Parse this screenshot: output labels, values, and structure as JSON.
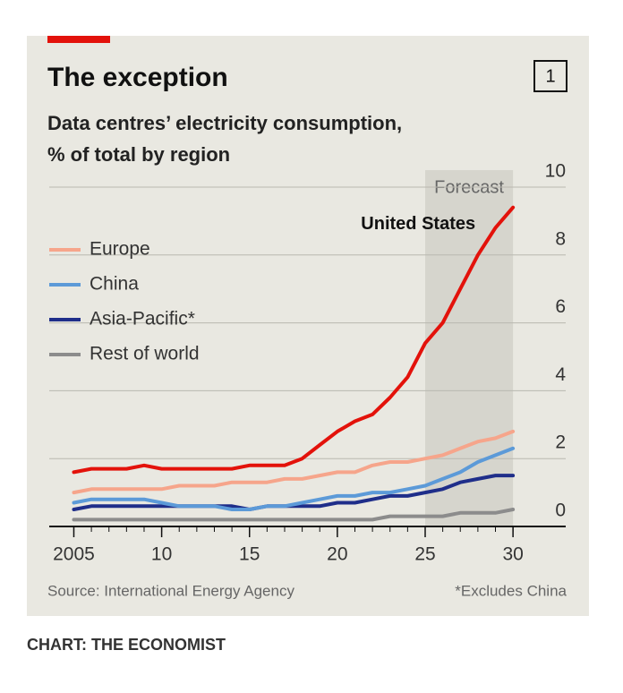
{
  "chart_data": {
    "type": "line",
    "title": "The exception",
    "chart_number": "1",
    "subtitle": [
      "Data centres’ electricity consumption,",
      "% of total by region"
    ],
    "x": [
      2005,
      2006,
      2007,
      2008,
      2009,
      2010,
      2011,
      2012,
      2013,
      2014,
      2015,
      2016,
      2017,
      2018,
      2019,
      2020,
      2021,
      2022,
      2023,
      2024,
      2025,
      2026,
      2027,
      2028,
      2029,
      2030
    ],
    "series": [
      {
        "name": "United States",
        "color": "#e3120b",
        "direct_label": true,
        "values": [
          1.6,
          1.7,
          1.7,
          1.7,
          1.8,
          1.7,
          1.7,
          1.7,
          1.7,
          1.7,
          1.8,
          1.8,
          1.8,
          2.0,
          2.4,
          2.8,
          3.1,
          3.3,
          3.8,
          4.4,
          5.4,
          6.0,
          7.0,
          8.0,
          8.8,
          9.4
        ]
      },
      {
        "name": "Europe",
        "color": "#f6a58b",
        "values": [
          1.0,
          1.1,
          1.1,
          1.1,
          1.1,
          1.1,
          1.2,
          1.2,
          1.2,
          1.3,
          1.3,
          1.3,
          1.4,
          1.4,
          1.5,
          1.6,
          1.6,
          1.8,
          1.9,
          1.9,
          2.0,
          2.1,
          2.3,
          2.5,
          2.6,
          2.8
        ]
      },
      {
        "name": "China",
        "color": "#5c9ad8",
        "values": [
          0.7,
          0.8,
          0.8,
          0.8,
          0.8,
          0.7,
          0.6,
          0.6,
          0.6,
          0.5,
          0.5,
          0.6,
          0.6,
          0.7,
          0.8,
          0.9,
          0.9,
          1.0,
          1.0,
          1.1,
          1.2,
          1.4,
          1.6,
          1.9,
          2.1,
          2.3
        ]
      },
      {
        "name": "Asia-Pacific*",
        "color": "#1f2e8a",
        "values": [
          0.5,
          0.6,
          0.6,
          0.6,
          0.6,
          0.6,
          0.6,
          0.6,
          0.6,
          0.6,
          0.5,
          0.6,
          0.6,
          0.6,
          0.6,
          0.7,
          0.7,
          0.8,
          0.9,
          0.9,
          1.0,
          1.1,
          1.3,
          1.4,
          1.5,
          1.5
        ]
      },
      {
        "name": "Rest of world",
        "color": "#8c8c8c",
        "values": [
          0.2,
          0.2,
          0.2,
          0.2,
          0.2,
          0.2,
          0.2,
          0.2,
          0.2,
          0.2,
          0.2,
          0.2,
          0.2,
          0.2,
          0.2,
          0.2,
          0.2,
          0.2,
          0.3,
          0.3,
          0.3,
          0.3,
          0.4,
          0.4,
          0.4,
          0.5
        ]
      }
    ],
    "shaded_region": {
      "label": "Forecast",
      "from": 2025,
      "to": 2030
    },
    "xlim": [
      2003.6,
      2033
    ],
    "xticks": [
      2005,
      {
        "value": 2010,
        "label": "10"
      },
      {
        "value": 2015,
        "label": "15"
      },
      {
        "value": 2020,
        "label": "20"
      },
      {
        "value": 2025,
        "label": "25"
      },
      {
        "value": 2030,
        "label": "30"
      }
    ],
    "ylim": [
      0,
      10.5
    ],
    "yticks": [
      0,
      2,
      4,
      6,
      8,
      10
    ],
    "grid": true,
    "legend": "left",
    "source": "Source: International Energy Agency",
    "footnote": "*Excludes China",
    "credit": "CHART: THE ECONOMIST"
  }
}
